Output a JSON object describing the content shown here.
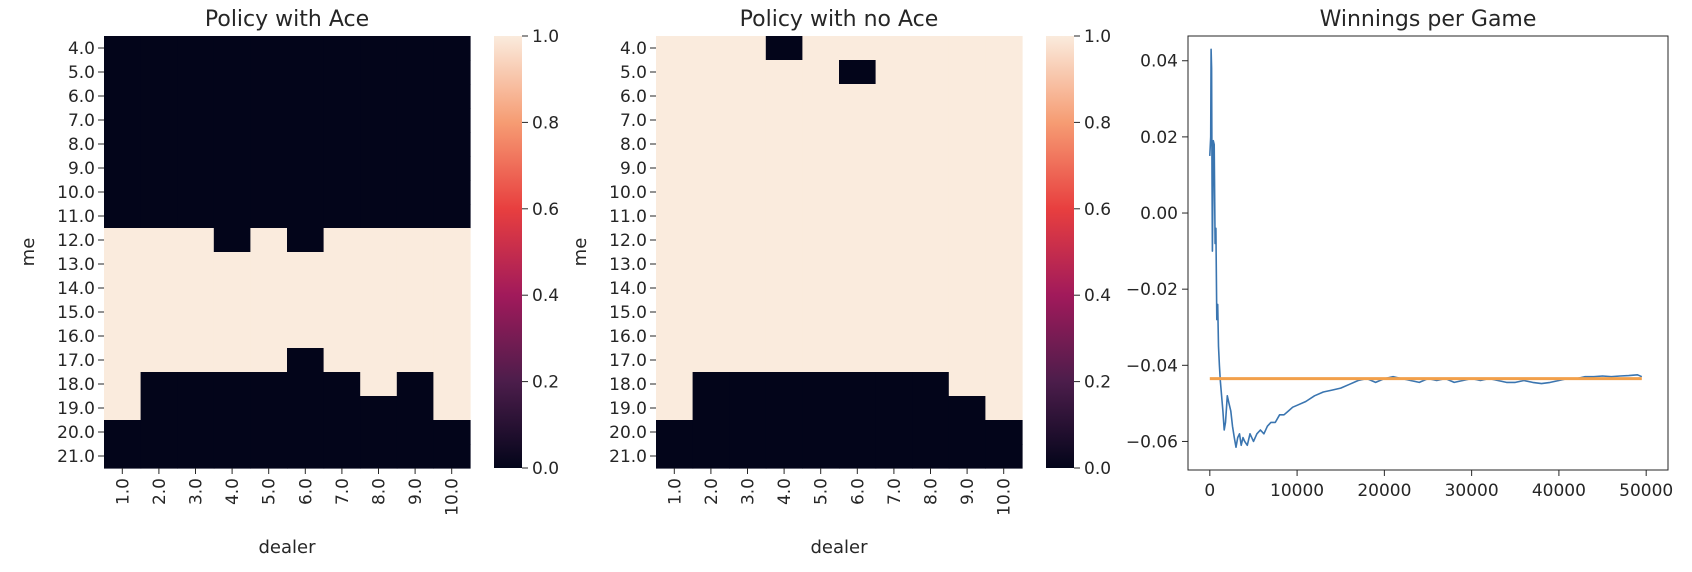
{
  "chart_data": [
    {
      "type": "heatmap",
      "title": "Policy with Ace",
      "xlabel": "dealer",
      "ylabel": "me",
      "x_ticks": [
        "1.0",
        "2.0",
        "3.0",
        "4.0",
        "5.0",
        "6.0",
        "7.0",
        "8.0",
        "9.0",
        "10.0"
      ],
      "y_ticks": [
        "4.0",
        "5.0",
        "6.0",
        "7.0",
        "8.0",
        "9.0",
        "10.0",
        "11.0",
        "12.0",
        "13.0",
        "14.0",
        "15.0",
        "16.0",
        "17.0",
        "18.0",
        "19.0",
        "20.0",
        "21.0"
      ],
      "colorbar": {
        "range": [
          0,
          1
        ],
        "ticks": [
          "0.0",
          "0.2",
          "0.4",
          "0.6",
          "0.8",
          "1.0"
        ]
      },
      "values": [
        [
          0,
          0,
          0,
          0,
          0,
          0,
          0,
          0,
          0,
          0
        ],
        [
          0,
          0,
          0,
          0,
          0,
          0,
          0,
          0,
          0,
          0
        ],
        [
          0,
          0,
          0,
          0,
          0,
          0,
          0,
          0,
          0,
          0
        ],
        [
          0,
          0,
          0,
          0,
          0,
          0,
          0,
          0,
          0,
          0
        ],
        [
          0,
          0,
          0,
          0,
          0,
          0,
          0,
          0,
          0,
          0
        ],
        [
          0,
          0,
          0,
          0,
          0,
          0,
          0,
          0,
          0,
          0
        ],
        [
          0,
          0,
          0,
          0,
          0,
          0,
          0,
          0,
          0,
          0
        ],
        [
          0,
          0,
          0,
          0,
          0,
          0,
          0,
          0,
          0,
          0
        ],
        [
          1,
          1,
          1,
          0,
          1,
          0,
          1,
          1,
          1,
          1
        ],
        [
          1,
          1,
          1,
          1,
          1,
          1,
          1,
          1,
          1,
          1
        ],
        [
          1,
          1,
          1,
          1,
          1,
          1,
          1,
          1,
          1,
          1
        ],
        [
          1,
          1,
          1,
          1,
          1,
          1,
          1,
          1,
          1,
          1
        ],
        [
          1,
          1,
          1,
          1,
          1,
          1,
          1,
          1,
          1,
          1
        ],
        [
          1,
          1,
          1,
          1,
          1,
          0,
          1,
          1,
          1,
          1
        ],
        [
          1,
          0,
          0,
          0,
          0,
          0,
          0,
          1,
          0,
          1
        ],
        [
          1,
          0,
          0,
          0,
          0,
          0,
          0,
          0,
          0,
          1
        ],
        [
          0,
          0,
          0,
          0,
          0,
          0,
          0,
          0,
          0,
          0
        ],
        [
          0,
          0,
          0,
          0,
          0,
          0,
          0,
          0,
          0,
          0
        ]
      ]
    },
    {
      "type": "heatmap",
      "title": "Policy with no Ace",
      "xlabel": "dealer",
      "ylabel": "me",
      "x_ticks": [
        "1.0",
        "2.0",
        "3.0",
        "4.0",
        "5.0",
        "6.0",
        "7.0",
        "8.0",
        "9.0",
        "10.0"
      ],
      "y_ticks": [
        "4.0",
        "5.0",
        "6.0",
        "7.0",
        "8.0",
        "9.0",
        "10.0",
        "11.0",
        "12.0",
        "13.0",
        "14.0",
        "15.0",
        "16.0",
        "17.0",
        "18.0",
        "19.0",
        "20.0",
        "21.0"
      ],
      "colorbar": {
        "range": [
          0,
          1
        ],
        "ticks": [
          "0.0",
          "0.2",
          "0.4",
          "0.6",
          "0.8",
          "1.0"
        ]
      },
      "values": [
        [
          1,
          1,
          1,
          0,
          1,
          1,
          1,
          1,
          1,
          1
        ],
        [
          1,
          1,
          1,
          1,
          1,
          0,
          1,
          1,
          1,
          1
        ],
        [
          1,
          1,
          1,
          1,
          1,
          1,
          1,
          1,
          1,
          1
        ],
        [
          1,
          1,
          1,
          1,
          1,
          1,
          1,
          1,
          1,
          1
        ],
        [
          1,
          1,
          1,
          1,
          1,
          1,
          1,
          1,
          1,
          1
        ],
        [
          1,
          1,
          1,
          1,
          1,
          1,
          1,
          1,
          1,
          1
        ],
        [
          1,
          1,
          1,
          1,
          1,
          1,
          1,
          1,
          1,
          1
        ],
        [
          1,
          1,
          1,
          1,
          1,
          1,
          1,
          1,
          1,
          1
        ],
        [
          1,
          1,
          1,
          1,
          1,
          1,
          1,
          1,
          1,
          1
        ],
        [
          1,
          1,
          1,
          1,
          1,
          1,
          1,
          1,
          1,
          1
        ],
        [
          1,
          1,
          1,
          1,
          1,
          1,
          1,
          1,
          1,
          1
        ],
        [
          1,
          1,
          1,
          1,
          1,
          1,
          1,
          1,
          1,
          1
        ],
        [
          1,
          1,
          1,
          1,
          1,
          1,
          1,
          1,
          1,
          1
        ],
        [
          1,
          1,
          1,
          1,
          1,
          1,
          1,
          1,
          1,
          1
        ],
        [
          1,
          0,
          0,
          0,
          0,
          0,
          0,
          0,
          1,
          1
        ],
        [
          1,
          0,
          0,
          0,
          0,
          0,
          0,
          0,
          0,
          1
        ],
        [
          0,
          0,
          0,
          0,
          0,
          0,
          0,
          0,
          0,
          0
        ],
        [
          0,
          0,
          0,
          0,
          0,
          0,
          0,
          0,
          0,
          0
        ]
      ]
    },
    {
      "type": "line",
      "title": "Winnings per Game",
      "xlabel": "",
      "ylabel": "",
      "xlim": [
        -2500,
        52500
      ],
      "ylim": [
        -0.0675,
        0.0465
      ],
      "x_ticks": [
        0,
        10000,
        20000,
        30000,
        40000,
        50000
      ],
      "y_ticks": [
        0.04,
        0.02,
        0.0,
        -0.02,
        -0.04,
        -0.06
      ],
      "y_tick_labels": [
        "0.04",
        "0.02",
        "0.00",
        "−0.02",
        "−0.04",
        "−0.06"
      ],
      "series": [
        {
          "color": "#3a75b0",
          "x": [
            0,
            100,
            150,
            200,
            250,
            300,
            350,
            400,
            500,
            600,
            700,
            800,
            900,
            1000,
            1100,
            1200,
            1350,
            1500,
            1650,
            1800,
            2000,
            2200,
            2400,
            2600,
            2800,
            3000,
            3200,
            3400,
            3600,
            3800,
            4000,
            4300,
            4600,
            5000,
            5400,
            5800,
            6200,
            6600,
            7000,
            7500,
            8000,
            8500,
            9000,
            9500,
            10000,
            11000,
            12000,
            13000,
            14000,
            15000,
            16000,
            17000,
            18000,
            19000,
            20000,
            21000,
            22000,
            23000,
            24000,
            25000,
            26000,
            27000,
            28000,
            29000,
            30000,
            31000,
            32000,
            33000,
            34000,
            35000,
            36000,
            37000,
            38000,
            39000,
            40000,
            41000,
            42000,
            43000,
            44000,
            45000,
            46000,
            47000,
            48000,
            49000,
            49500
          ],
          "y": [
            0.015,
            0.02,
            0.043,
            0.038,
            0.01,
            -0.01,
            0.005,
            0.019,
            0.018,
            -0.008,
            -0.004,
            -0.028,
            -0.024,
            -0.035,
            -0.04,
            -0.044,
            -0.048,
            -0.052,
            -0.057,
            -0.055,
            -0.048,
            -0.05,
            -0.052,
            -0.056,
            -0.059,
            -0.0615,
            -0.059,
            -0.058,
            -0.061,
            -0.059,
            -0.06,
            -0.061,
            -0.058,
            -0.06,
            -0.058,
            -0.057,
            -0.058,
            -0.056,
            -0.055,
            -0.055,
            -0.053,
            -0.053,
            -0.052,
            -0.051,
            -0.0505,
            -0.0495,
            -0.048,
            -0.047,
            -0.0465,
            -0.046,
            -0.045,
            -0.044,
            -0.0435,
            -0.0445,
            -0.0435,
            -0.043,
            -0.0435,
            -0.044,
            -0.0445,
            -0.0435,
            -0.044,
            -0.0435,
            -0.0445,
            -0.044,
            -0.0435,
            -0.044,
            -0.0435,
            -0.044,
            -0.0445,
            -0.0445,
            -0.044,
            -0.0445,
            -0.0448,
            -0.0445,
            -0.044,
            -0.0435,
            -0.0435,
            -0.043,
            -0.043,
            -0.0428,
            -0.043,
            -0.0428,
            -0.0427,
            -0.0425,
            -0.043
          ]
        },
        {
          "color": "#f2a04b",
          "x": [
            0,
            49500
          ],
          "y": [
            -0.0435,
            -0.0435
          ]
        }
      ]
    }
  ],
  "colors": {
    "heat_low": "#03051a",
    "heat_high": "#faebdd",
    "axis": "#262626",
    "text": "#262626"
  }
}
